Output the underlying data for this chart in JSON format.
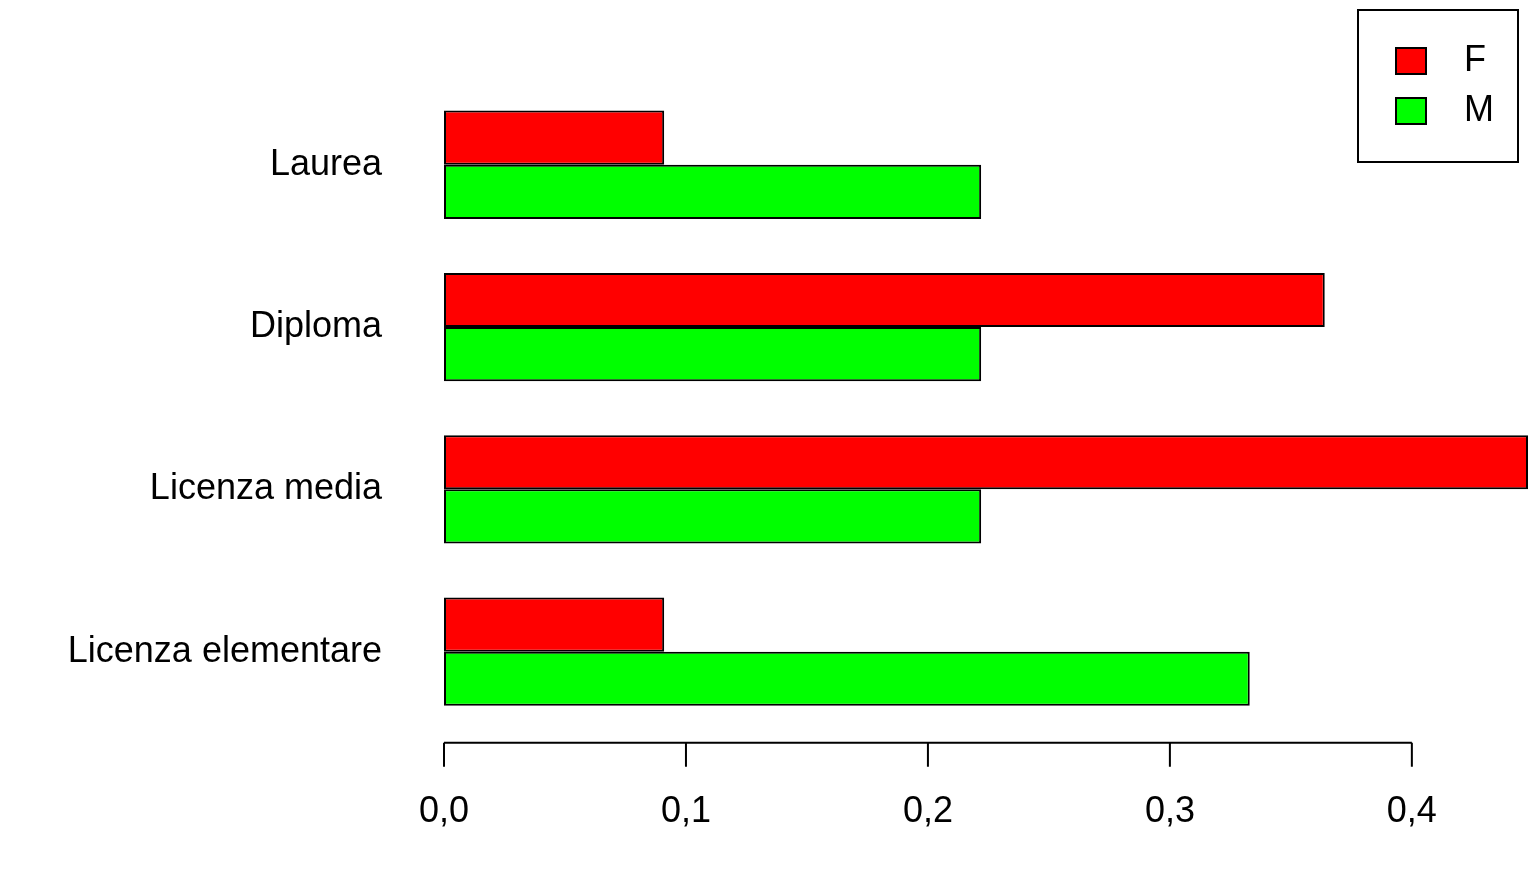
{
  "chart_data": {
    "type": "bar",
    "orientation": "horizontal",
    "categories": [
      "Laurea",
      "Diploma",
      "Licenza media",
      "Licenza elementare"
    ],
    "series": [
      {
        "name": "F",
        "color": "#ff0000",
        "values": [
          0.091,
          0.364,
          0.448,
          0.091
        ]
      },
      {
        "name": "M",
        "color": "#00ff00",
        "values": [
          0.222,
          0.222,
          0.222,
          0.333
        ]
      }
    ],
    "xlim": [
      0,
      0.448
    ],
    "xticks": [
      {
        "value": 0,
        "label": "0,0"
      },
      {
        "value": 0.1,
        "label": "0,1"
      },
      {
        "value": 0.2,
        "label": "0,2"
      },
      {
        "value": 0.3,
        "label": "0,3"
      },
      {
        "value": 0.4,
        "label": "0,4"
      }
    ],
    "legend": "top right",
    "grid": false
  }
}
